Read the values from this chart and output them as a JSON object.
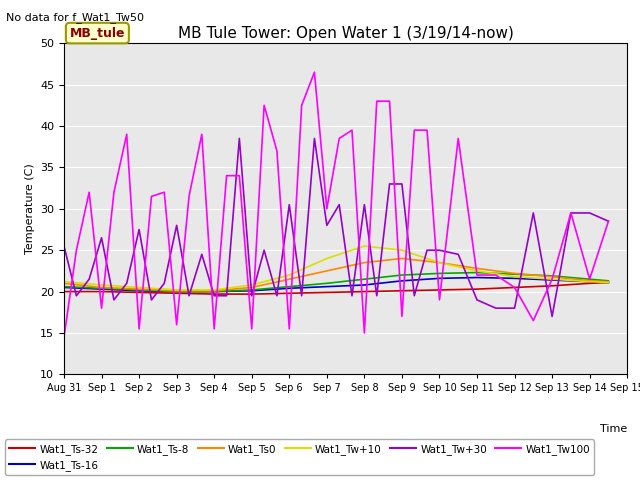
{
  "title": "MB Tule Tower: Open Water 1 (3/19/14-now)",
  "ylabel": "Temperature (C)",
  "xlabel": "Time",
  "no_data_text": "No data for f_Wat1_Tw50",
  "ylim": [
    10,
    50
  ],
  "yticks": [
    10,
    15,
    20,
    25,
    30,
    35,
    40,
    45,
    50
  ],
  "bg_color": "#e8e8e8",
  "legend_box_label": "MB_tule",
  "legend_box_facecolor": "#ffffcc",
  "legend_box_edgecolor": "#999900",
  "legend_box_textcolor": "#8b0000",
  "series": {
    "Wat1_Ts-32": {
      "color": "#cc0000",
      "lw": 1.2,
      "values_x": [
        0,
        1,
        2,
        3,
        4,
        5,
        6,
        7,
        8,
        9,
        10,
        11,
        12,
        13,
        14,
        14.5
      ],
      "values_y": [
        20.0,
        20.0,
        19.9,
        19.8,
        19.7,
        19.7,
        19.8,
        19.9,
        20.0,
        20.1,
        20.2,
        20.3,
        20.5,
        20.7,
        21.0,
        21.1
      ]
    },
    "Wat1_Ts-16": {
      "color": "#0000cc",
      "lw": 1.2,
      "values_x": [
        0,
        1,
        2,
        3,
        4,
        5,
        6,
        7,
        8,
        9,
        10,
        11,
        12,
        13,
        14,
        14.5
      ],
      "values_y": [
        20.5,
        20.3,
        20.1,
        20.0,
        20.0,
        20.1,
        20.4,
        20.6,
        20.8,
        21.3,
        21.6,
        21.7,
        21.6,
        21.4,
        21.2,
        21.1
      ]
    },
    "Wat1_Ts-8": {
      "color": "#00aa00",
      "lw": 1.2,
      "values_x": [
        0,
        1,
        2,
        3,
        4,
        5,
        6,
        7,
        8,
        9,
        10,
        11,
        12,
        13,
        14,
        14.5
      ],
      "values_y": [
        20.6,
        20.4,
        20.2,
        20.0,
        20.0,
        20.2,
        20.6,
        21.0,
        21.5,
        22.0,
        22.2,
        22.3,
        22.1,
        21.9,
        21.5,
        21.3
      ]
    },
    "Wat1_Ts0": {
      "color": "#ff8800",
      "lw": 1.2,
      "values_x": [
        0,
        1,
        2,
        3,
        4,
        5,
        6,
        7,
        8,
        9,
        10,
        11,
        12,
        13,
        14,
        14.5
      ],
      "values_y": [
        21.0,
        20.5,
        20.3,
        20.1,
        20.1,
        20.5,
        21.5,
        22.5,
        23.5,
        24.0,
        23.5,
        22.8,
        22.2,
        21.8,
        21.3,
        21.2
      ]
    },
    "Wat1_Tw+10": {
      "color": "#dddd00",
      "lw": 1.2,
      "values_x": [
        0,
        1,
        2,
        3,
        4,
        5,
        6,
        7,
        8,
        9,
        10,
        11,
        12,
        13,
        14,
        14.5
      ],
      "values_y": [
        21.2,
        20.8,
        20.5,
        20.2,
        20.2,
        20.8,
        22.0,
        24.0,
        25.5,
        25.0,
        23.5,
        22.5,
        21.8,
        21.5,
        21.2,
        21.1
      ]
    },
    "Wat1_Tw+30": {
      "color": "#9900cc",
      "lw": 1.2,
      "values_x": [
        0,
        0.33,
        0.67,
        1.0,
        1.33,
        1.67,
        2.0,
        2.33,
        2.67,
        3.0,
        3.33,
        3.67,
        4.0,
        4.33,
        4.67,
        5.0,
        5.33,
        5.67,
        6.0,
        6.33,
        6.67,
        7.0,
        7.33,
        7.67,
        8.0,
        8.33,
        8.67,
        9.0,
        9.33,
        9.67,
        10.0,
        10.5,
        11.0,
        11.5,
        12.0,
        12.5,
        13.0,
        13.5,
        14.0,
        14.5
      ],
      "values_y": [
        25.5,
        19.5,
        21.5,
        26.5,
        19.0,
        21.0,
        27.5,
        19.0,
        21.0,
        28.0,
        19.5,
        24.5,
        19.5,
        19.5,
        38.5,
        19.5,
        25.0,
        19.5,
        30.5,
        19.5,
        38.5,
        28.0,
        30.5,
        19.5,
        30.5,
        19.5,
        33.0,
        33.0,
        19.5,
        25.0,
        25.0,
        24.5,
        19.0,
        18.0,
        18.0,
        29.5,
        17.0,
        29.5,
        29.5,
        28.5
      ]
    },
    "Wat1_Tw100": {
      "color": "#ff00ff",
      "lw": 1.2,
      "values_x": [
        0,
        0.33,
        0.67,
        1.0,
        1.33,
        1.67,
        2.0,
        2.33,
        2.67,
        3.0,
        3.33,
        3.67,
        4.0,
        4.33,
        4.67,
        5.0,
        5.33,
        5.67,
        6.0,
        6.33,
        6.67,
        7.0,
        7.33,
        7.67,
        8.0,
        8.33,
        8.67,
        9.0,
        9.33,
        9.67,
        10.0,
        10.5,
        11.0,
        11.5,
        12.0,
        12.5,
        13.0,
        13.5,
        14.0,
        14.5
      ],
      "values_y": [
        14.5,
        25.0,
        32.0,
        18.0,
        32.0,
        39.0,
        15.5,
        31.5,
        32.0,
        16.0,
        31.5,
        39.0,
        15.5,
        34.0,
        34.0,
        15.5,
        42.5,
        37.0,
        15.5,
        42.5,
        46.5,
        30.0,
        38.5,
        39.5,
        15.0,
        43.0,
        43.0,
        17.0,
        39.5,
        39.5,
        19.0,
        38.5,
        22.0,
        22.0,
        20.5,
        16.5,
        21.5,
        29.5,
        21.5,
        28.5
      ]
    }
  },
  "xtick_positions": [
    0,
    1,
    2,
    3,
    4,
    5,
    6,
    7,
    8,
    9,
    10,
    11,
    12,
    13,
    14,
    15
  ],
  "xtick_labels": [
    "Aug 31",
    "Sep 1",
    "Sep 2",
    "Sep 3",
    "Sep 4",
    "Sep 5",
    "Sep 6",
    "Sep 7",
    "Sep 8",
    "Sep 9",
    "Sep 10",
    "Sep 11",
    "Sep 12",
    "Sep 13",
    "Sep 14",
    "Sep 15"
  ],
  "xlim": [
    0,
    15
  ]
}
